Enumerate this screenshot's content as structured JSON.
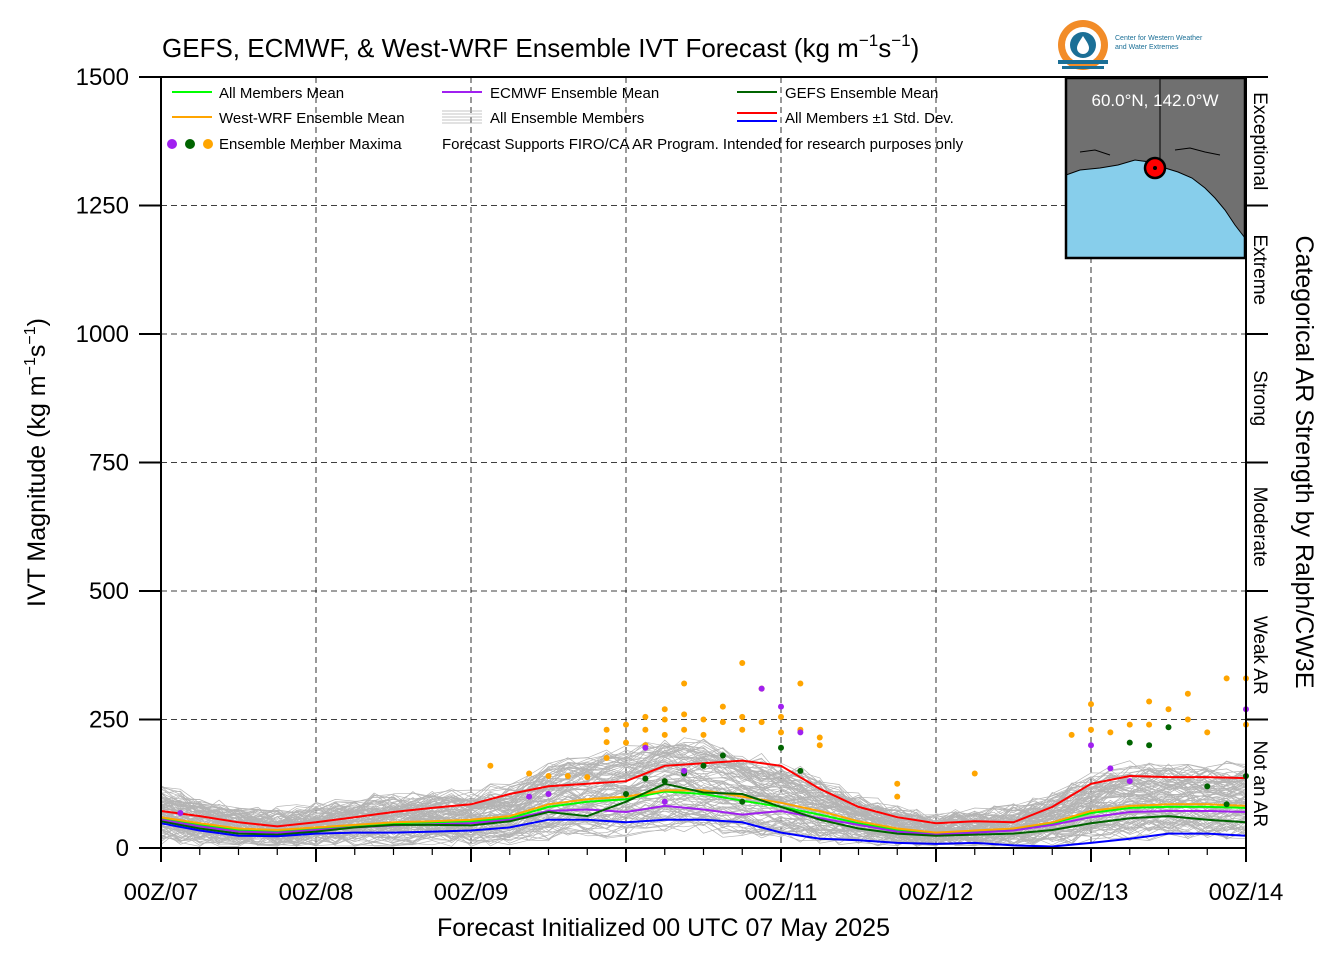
{
  "title_prefix": "GEFS, ECMWF, & West-WRF Ensemble IVT Forecast (kg m",
  "title_exp1": "−1",
  "title_mid": "s",
  "title_exp2": "−1",
  "title_suffix": ")",
  "logo": {
    "line1": "Center for Western Weather",
    "line2": "and Water Extremes"
  },
  "map": {
    "location_label": "60.0°N, 142.0°W",
    "colors": {
      "land": "#707070",
      "ocean": "#87ceeb",
      "marker": "#ff0000"
    }
  },
  "legend": {
    "all_mean": "All Members Mean",
    "ecmwf_mean": "ECMWF Ensemble Mean",
    "gefs_mean": "GEFS Ensemble Mean",
    "wwrf_mean": "West-WRF Ensemble Mean",
    "all_members": "All Ensemble Members",
    "std_dev": "All Members ±1 Std. Dev.",
    "maxima": "Ensemble Member Maxima",
    "disclaimer": "Forecast Supports FIRO/CA AR Program. Intended for research purposes only"
  },
  "categories": {
    "title": "Categorical AR Strength by Ralph/CW3E",
    "items": [
      {
        "label": "Not an AR",
        "from": 0,
        "to": 250
      },
      {
        "label": "Weak AR",
        "from": 250,
        "to": 500
      },
      {
        "label": "Moderate",
        "from": 500,
        "to": 750
      },
      {
        "label": "Strong",
        "from": 750,
        "to": 1000
      },
      {
        "label": "Extreme",
        "from": 1000,
        "to": 1250
      },
      {
        "label": "Exceptional",
        "from": 1250,
        "to": 1500
      }
    ]
  },
  "chart_data": {
    "type": "line",
    "title": "GEFS, ECMWF, & West-WRF Ensemble IVT Forecast (kg m−1s−1)",
    "xlabel": "Forecast Initialized 00 UTC 07 May 2025",
    "ylabel_prefix": "IVT Magnitude (kg m",
    "ylabel_exp1": "−1",
    "ylabel_mid": "s",
    "ylabel_exp2": "−1",
    "ylabel_suffix": ")",
    "x_unit": "forecast hour",
    "xlim": [
      0,
      168
    ],
    "ylim": [
      0,
      1500
    ],
    "xticks": [
      {
        "x": 0,
        "label": "00Z/07"
      },
      {
        "x": 24,
        "label": "00Z/08"
      },
      {
        "x": 48,
        "label": "00Z/09"
      },
      {
        "x": 72,
        "label": "00Z/10"
      },
      {
        "x": 96,
        "label": "00Z/11"
      },
      {
        "x": 120,
        "label": "00Z/12"
      },
      {
        "x": 144,
        "label": "00Z/13"
      },
      {
        "x": 168,
        "label": "00Z/14"
      }
    ],
    "yticks": [
      0,
      250,
      500,
      750,
      1000,
      1250,
      1500
    ],
    "grid": true,
    "legend_position": "top-left",
    "series": [
      {
        "name": "All Members Mean",
        "color": "#00ff00",
        "x": [
          0,
          6,
          12,
          18,
          24,
          30,
          36,
          42,
          48,
          54,
          60,
          66,
          72,
          78,
          84,
          90,
          96,
          102,
          108,
          114,
          120,
          126,
          132,
          138,
          144,
          150,
          156,
          162,
          168
        ],
        "y": [
          58,
          45,
          35,
          33,
          38,
          44,
          48,
          50,
          52,
          58,
          80,
          90,
          95,
          110,
          105,
          92,
          80,
          65,
          48,
          35,
          28,
          32,
          36,
          48,
          68,
          78,
          80,
          80,
          78
        ]
      },
      {
        "name": "West-WRF Ensemble Mean",
        "color": "#ffa500",
        "x": [
          0,
          6,
          12,
          18,
          24,
          30,
          36,
          42,
          48,
          54,
          60,
          66,
          72,
          78,
          84,
          90,
          96,
          102,
          108,
          114,
          120,
          126,
          132,
          138,
          144,
          150,
          156,
          162,
          168
        ],
        "y": [
          60,
          48,
          38,
          35,
          40,
          45,
          50,
          52,
          55,
          62,
          85,
          95,
          100,
          112,
          112,
          100,
          88,
          72,
          52,
          38,
          30,
          34,
          38,
          50,
          72,
          82,
          85,
          85,
          82
        ]
      },
      {
        "name": "ECMWF Ensemble Mean",
        "color": "#a020f0",
        "x": [
          0,
          6,
          12,
          18,
          24,
          30,
          36,
          42,
          48,
          54,
          60,
          66,
          72,
          78,
          84,
          90,
          96,
          102,
          108,
          114,
          120,
          126,
          132,
          138,
          144,
          150,
          156,
          162,
          168
        ],
        "y": [
          55,
          42,
          32,
          30,
          35,
          40,
          44,
          46,
          48,
          55,
          72,
          75,
          70,
          82,
          75,
          65,
          72,
          58,
          45,
          32,
          26,
          30,
          34,
          45,
          60,
          70,
          72,
          72,
          70
        ]
      },
      {
        "name": "GEFS Ensemble Mean",
        "color": "#006400",
        "x": [
          0,
          6,
          12,
          18,
          24,
          30,
          36,
          42,
          48,
          54,
          60,
          66,
          72,
          78,
          84,
          90,
          96,
          102,
          108,
          114,
          120,
          126,
          132,
          138,
          144,
          150,
          156,
          162,
          168
        ],
        "y": [
          52,
          38,
          28,
          26,
          32,
          40,
          45,
          45,
          44,
          52,
          70,
          62,
          90,
          125,
          108,
          105,
          80,
          55,
          38,
          28,
          24,
          26,
          28,
          35,
          48,
          58,
          62,
          55,
          50
        ]
      },
      {
        "name": "All Members +1 Std. Dev.",
        "color": "#ff0000",
        "x": [
          0,
          6,
          12,
          18,
          24,
          30,
          36,
          42,
          48,
          54,
          60,
          66,
          72,
          78,
          84,
          90,
          96,
          102,
          108,
          114,
          120,
          126,
          132,
          138,
          144,
          150,
          156,
          162,
          168
        ],
        "y": [
          72,
          62,
          50,
          42,
          50,
          60,
          70,
          78,
          85,
          105,
          120,
          125,
          130,
          160,
          165,
          170,
          160,
          115,
          80,
          60,
          48,
          52,
          50,
          80,
          125,
          140,
          138,
          138,
          136
        ]
      },
      {
        "name": "All Members -1 Std. Dev.",
        "color": "#0000ff",
        "x": [
          0,
          6,
          12,
          18,
          24,
          30,
          36,
          42,
          48,
          54,
          60,
          66,
          72,
          78,
          84,
          90,
          96,
          102,
          108,
          114,
          120,
          126,
          132,
          138,
          144,
          150,
          156,
          162,
          168
        ],
        "y": [
          48,
          34,
          24,
          23,
          28,
          30,
          30,
          32,
          34,
          40,
          55,
          55,
          50,
          55,
          55,
          50,
          30,
          18,
          15,
          10,
          8,
          10,
          5,
          3,
          10,
          18,
          28,
          28,
          24
        ]
      }
    ],
    "maxima": {
      "wwrf": [
        {
          "x": 51,
          "y": 160
        },
        {
          "x": 57,
          "y": 145
        },
        {
          "x": 60,
          "y": 140
        },
        {
          "x": 63,
          "y": 140
        },
        {
          "x": 66,
          "y": 138
        },
        {
          "x": 69,
          "y": 206
        },
        {
          "x": 69,
          "y": 230
        },
        {
          "x": 69,
          "y": 175
        },
        {
          "x": 72,
          "y": 240
        },
        {
          "x": 72,
          "y": 205
        },
        {
          "x": 75,
          "y": 255
        },
        {
          "x": 75,
          "y": 230
        },
        {
          "x": 75,
          "y": 200
        },
        {
          "x": 78,
          "y": 270
        },
        {
          "x": 78,
          "y": 250
        },
        {
          "x": 78,
          "y": 220
        },
        {
          "x": 81,
          "y": 320
        },
        {
          "x": 81,
          "y": 260
        },
        {
          "x": 81,
          "y": 230
        },
        {
          "x": 84,
          "y": 250
        },
        {
          "x": 84,
          "y": 220
        },
        {
          "x": 87,
          "y": 275
        },
        {
          "x": 87,
          "y": 245
        },
        {
          "x": 90,
          "y": 360
        },
        {
          "x": 90,
          "y": 255
        },
        {
          "x": 90,
          "y": 230
        },
        {
          "x": 93,
          "y": 310
        },
        {
          "x": 93,
          "y": 245
        },
        {
          "x": 96,
          "y": 255
        },
        {
          "x": 96,
          "y": 225
        },
        {
          "x": 99,
          "y": 320
        },
        {
          "x": 99,
          "y": 230
        },
        {
          "x": 102,
          "y": 215
        },
        {
          "x": 102,
          "y": 200
        },
        {
          "x": 114,
          "y": 125
        },
        {
          "x": 114,
          "y": 100
        },
        {
          "x": 126,
          "y": 145
        },
        {
          "x": 141,
          "y": 220
        },
        {
          "x": 144,
          "y": 280
        },
        {
          "x": 144,
          "y": 230
        },
        {
          "x": 147,
          "y": 225
        },
        {
          "x": 150,
          "y": 240
        },
        {
          "x": 153,
          "y": 285
        },
        {
          "x": 153,
          "y": 240
        },
        {
          "x": 156,
          "y": 270
        },
        {
          "x": 159,
          "y": 300
        },
        {
          "x": 159,
          "y": 250
        },
        {
          "x": 162,
          "y": 225
        },
        {
          "x": 165,
          "y": 330
        },
        {
          "x": 168,
          "y": 330
        },
        {
          "x": 168,
          "y": 240
        }
      ],
      "gefs": [
        {
          "x": 72,
          "y": 105
        },
        {
          "x": 75,
          "y": 135
        },
        {
          "x": 78,
          "y": 130
        },
        {
          "x": 81,
          "y": 145
        },
        {
          "x": 84,
          "y": 160
        },
        {
          "x": 87,
          "y": 180
        },
        {
          "x": 90,
          "y": 90
        },
        {
          "x": 96,
          "y": 195
        },
        {
          "x": 99,
          "y": 150
        },
        {
          "x": 150,
          "y": 205
        },
        {
          "x": 153,
          "y": 200
        },
        {
          "x": 156,
          "y": 235
        },
        {
          "x": 162,
          "y": 120
        },
        {
          "x": 165,
          "y": 85
        },
        {
          "x": 168,
          "y": 140
        }
      ],
      "ecmwf": [
        {
          "x": 3,
          "y": 68
        },
        {
          "x": 57,
          "y": 100
        },
        {
          "x": 60,
          "y": 105
        },
        {
          "x": 75,
          "y": 195
        },
        {
          "x": 78,
          "y": 90
        },
        {
          "x": 81,
          "y": 150
        },
        {
          "x": 93,
          "y": 310
        },
        {
          "x": 96,
          "y": 275
        },
        {
          "x": 99,
          "y": 225
        },
        {
          "x": 144,
          "y": 200
        },
        {
          "x": 147,
          "y": 155
        },
        {
          "x": 150,
          "y": 130
        },
        {
          "x": 168,
          "y": 270
        }
      ]
    }
  }
}
